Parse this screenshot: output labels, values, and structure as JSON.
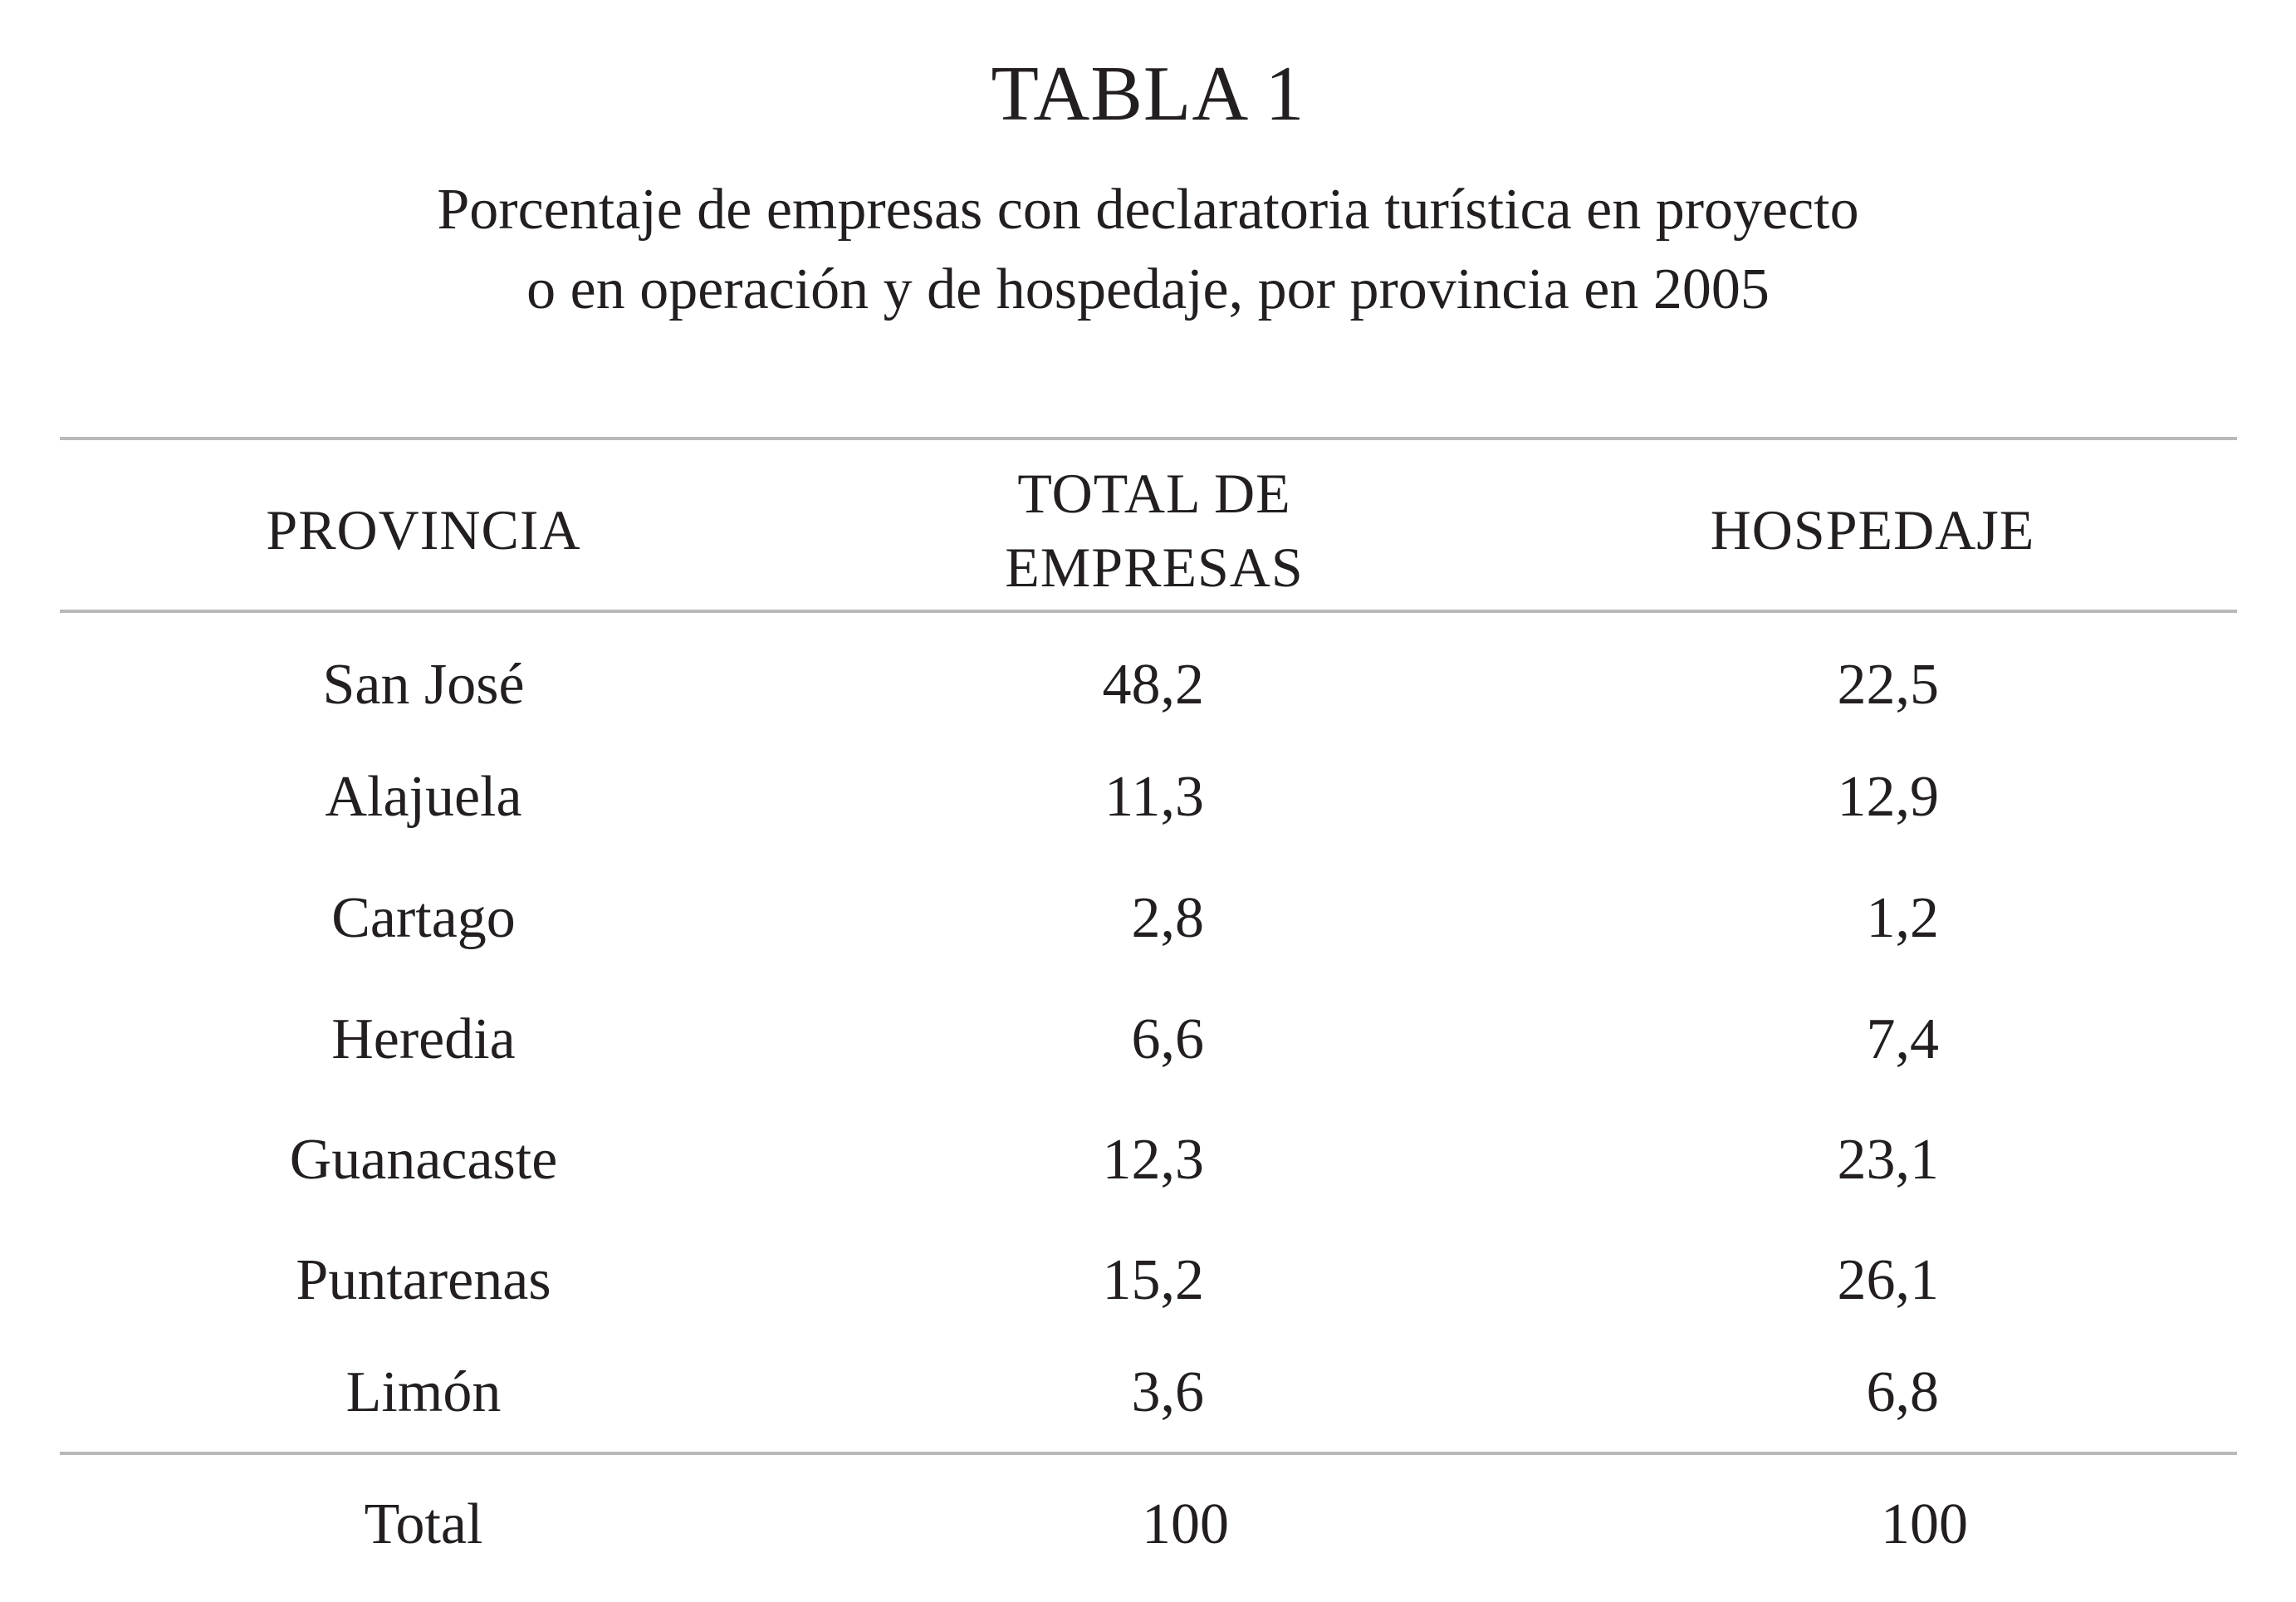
{
  "title": "TABLA 1",
  "subtitle_line1": "Porcentaje de empresas con declaratoria turística en proyecto",
  "subtitle_line2": "o en operación y de hospedaje, por provincia en 2005",
  "headers": {
    "provincia": "PROVINCIA",
    "total_line1": "TOTAL DE",
    "total_line2": "EMPRESAS",
    "hospedaje": "HOSPEDAJE"
  },
  "rows": [
    {
      "provincia": "San José",
      "total": "48,2",
      "hospedaje": "22,5"
    },
    {
      "provincia": "Alajuela",
      "total": "11,3",
      "hospedaje": "12,9"
    },
    {
      "provincia": "Cartago",
      "total": "2,8",
      "hospedaje": "1,2"
    },
    {
      "provincia": "Heredia",
      "total": "6,6",
      "hospedaje": "7,4"
    },
    {
      "provincia": "Guanacaste",
      "total": "12,3",
      "hospedaje": "23,1"
    },
    {
      "provincia": "Puntarenas",
      "total": "15,2",
      "hospedaje": "26,1"
    },
    {
      "provincia": "Limón",
      "total": "3,6",
      "hospedaje": "6,8"
    }
  ],
  "footer": {
    "label": "Total",
    "total": "100",
    "hospedaje": "100"
  }
}
